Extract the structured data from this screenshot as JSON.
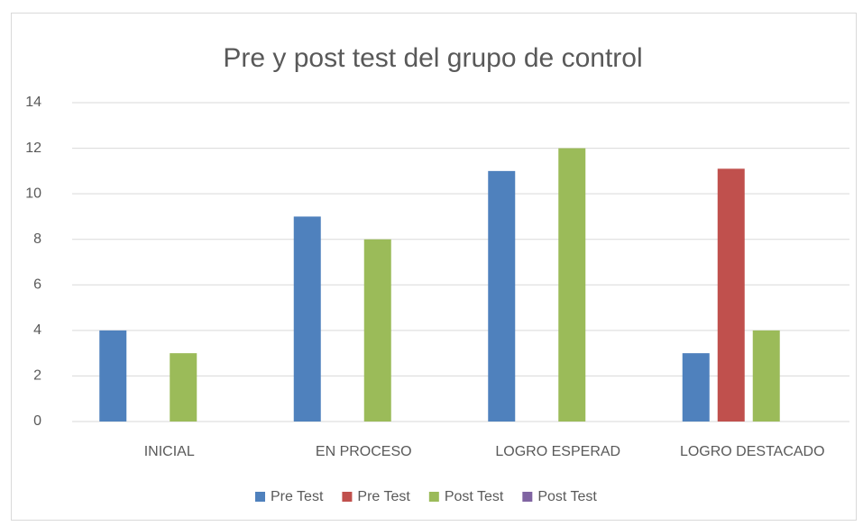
{
  "chart_data": {
    "type": "bar",
    "title": "Pre y post test del grupo de control",
    "categories": [
      "INICIAL",
      "EN PROCESO",
      "LOGRO ESPERAD",
      "LOGRO DESTACADO"
    ],
    "series": [
      {
        "name": "Pre Test",
        "color": "#4f81bd",
        "values": [
          4,
          9,
          11,
          3
        ]
      },
      {
        "name": "Pre Test",
        "color": "#c0504d",
        "values": [
          null,
          null,
          null,
          11.1
        ]
      },
      {
        "name": "Post Test",
        "color": "#9bbb59",
        "values": [
          3,
          8,
          12,
          4
        ]
      },
      {
        "name": "Post Test",
        "color": "#8064a2",
        "values": [
          null,
          null,
          null,
          null
        ]
      }
    ],
    "ylim": [
      0,
      14
    ],
    "yticks": [
      0,
      2,
      4,
      6,
      8,
      10,
      12,
      14
    ],
    "grid": true,
    "legend": "bottom"
  }
}
